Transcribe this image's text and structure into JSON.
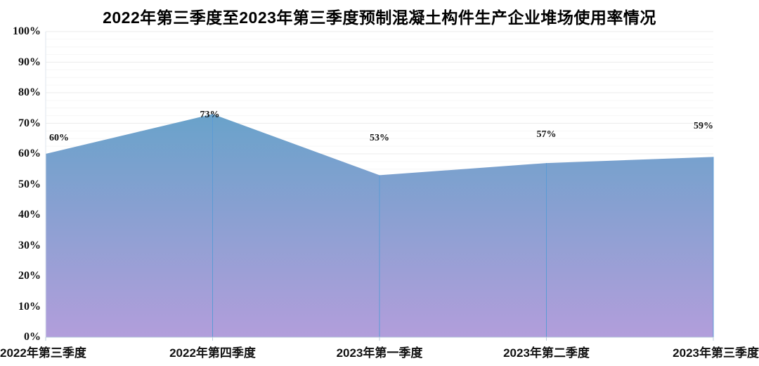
{
  "chart_data": {
    "type": "area",
    "title": "2022年第三季度至2023年第三季度预制混凝土构件生产企业堆场使用率情况",
    "categories": [
      "2022年第三季度",
      "2022年第四季度",
      "2023年第一季度",
      "2023年第二季度",
      "2023年第三季度"
    ],
    "values": [
      60,
      73,
      53,
      57,
      59
    ],
    "data_labels": [
      "60%",
      "73%",
      "53%",
      "57%",
      "59%"
    ],
    "y_tick_labels": [
      "0%",
      "10%",
      "20%",
      "30%",
      "40%",
      "50%",
      "60%",
      "70%",
      "80%",
      "90%",
      "100%"
    ],
    "y_ticks": [
      0,
      10,
      20,
      30,
      40,
      50,
      60,
      70,
      80,
      90,
      100
    ],
    "xlabel": "",
    "ylabel": "",
    "ylim": [
      0,
      100
    ],
    "grid": "horizontal-minor",
    "minor_grid_step": 2.5,
    "legend": "none",
    "colors": {
      "area_gradient_top": "#69A2CA",
      "area_gradient_bottom": "#B29EDB",
      "drop_line": "#5B9BD5",
      "major_gridline": "#EBEBEB",
      "minor_gridline": "#F6F6F6",
      "axis_line": "#B7C9DB",
      "value_axis_line": "#DDE5ED",
      "text": "#111111"
    }
  }
}
